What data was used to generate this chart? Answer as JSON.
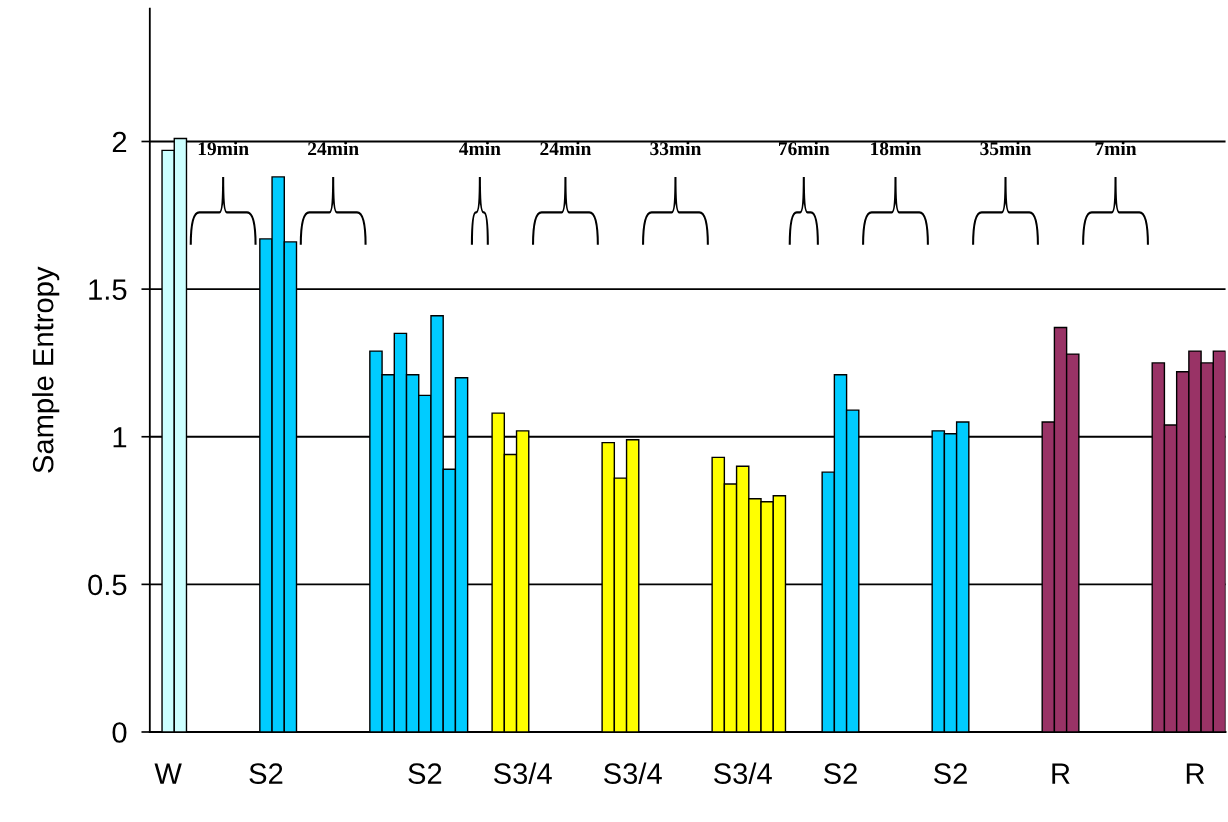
{
  "chart_data": {
    "type": "bar",
    "ylabel": "Sample Entropy",
    "categories": [
      null,
      "W",
      null,
      null,
      null,
      null,
      null,
      null,
      null,
      "S2",
      null,
      null,
      null,
      null,
      null,
      null,
      null,
      null,
      null,
      null,
      null,
      null,
      "S2",
      null,
      null,
      null,
      null,
      null,
      null,
      null,
      "S3/4",
      null,
      null,
      null,
      null,
      null,
      null,
      null,
      null,
      "S3/4",
      null,
      null,
      null,
      null,
      null,
      null,
      null,
      null,
      "S3/4",
      null,
      null,
      null,
      null,
      null,
      null,
      null,
      "S2",
      null,
      null,
      null,
      null,
      null,
      null,
      null,
      null,
      "S2",
      null,
      null,
      null,
      null,
      null,
      null,
      null,
      null,
      "R",
      null,
      null,
      null,
      null,
      null,
      null,
      null,
      null,
      null,
      null,
      "R",
      null,
      null
    ],
    "values": [
      null,
      1.97,
      2.01,
      null,
      null,
      null,
      null,
      null,
      null,
      1.67,
      1.88,
      1.66,
      null,
      null,
      null,
      null,
      null,
      null,
      1.29,
      1.21,
      1.35,
      1.21,
      1.14,
      1.41,
      0.89,
      1.2,
      null,
      null,
      1.08,
      0.94,
      1.02,
      null,
      null,
      null,
      null,
      null,
      null,
      0.98,
      0.86,
      0.99,
      null,
      null,
      null,
      null,
      null,
      null,
      0.93,
      0.84,
      0.9,
      0.79,
      0.78,
      0.8,
      null,
      null,
      null,
      0.88,
      1.21,
      1.09,
      null,
      null,
      null,
      null,
      null,
      null,
      1.02,
      1.01,
      1.05,
      null,
      null,
      null,
      null,
      null,
      null,
      1.05,
      1.37,
      1.28,
      null,
      null,
      null,
      null,
      null,
      null,
      1.25,
      1.04,
      1.22,
      1.29,
      1.25,
      1.29
    ],
    "colors": [
      null,
      "#ccffff",
      "#ccffff",
      null,
      null,
      null,
      null,
      null,
      null,
      "#00ccff",
      "#00ccff",
      "#00ccff",
      null,
      null,
      null,
      null,
      null,
      null,
      "#00ccff",
      "#00ccff",
      "#00ccff",
      "#00ccff",
      "#00ccff",
      "#00ccff",
      "#00ccff",
      "#00ccff",
      null,
      null,
      "#ffff00",
      "#ffff00",
      "#ffff00",
      null,
      null,
      null,
      null,
      null,
      null,
      "#ffff00",
      "#ffff00",
      "#ffff00",
      null,
      null,
      null,
      null,
      null,
      null,
      "#ffff00",
      "#ffff00",
      "#ffff00",
      "#ffff00",
      "#ffff00",
      "#ffff00",
      null,
      null,
      null,
      "#00ccff",
      "#00ccff",
      "#00ccff",
      null,
      null,
      null,
      null,
      null,
      null,
      "#00ccff",
      "#00ccff",
      "#00ccff",
      null,
      null,
      null,
      null,
      null,
      null,
      "#993366",
      "#993366",
      "#993366",
      null,
      null,
      null,
      null,
      null,
      null,
      "#993366",
      "#993366",
      "#993366",
      "#993366",
      "#993366",
      "#993366"
    ],
    "ylim": [
      0,
      2.45
    ],
    "yticks": [
      0,
      0.5,
      1,
      1.5,
      2
    ],
    "grid": "y",
    "annotations": [
      "19min",
      "24min",
      "4min",
      "24min",
      "33min",
      "76min",
      "18min",
      "35min",
      "7min"
    ]
  }
}
